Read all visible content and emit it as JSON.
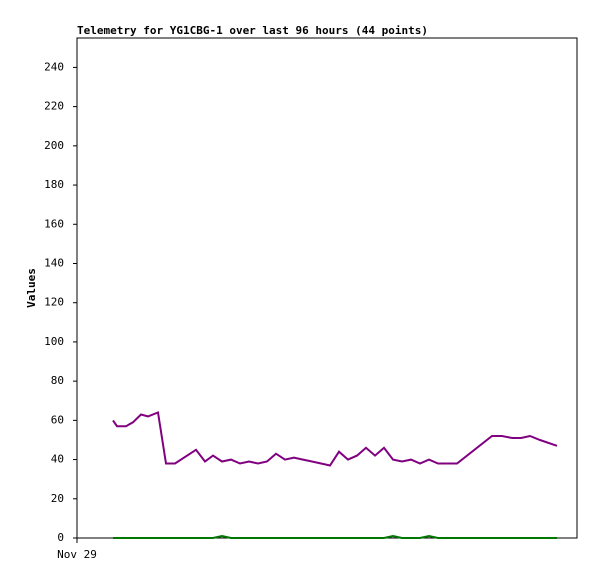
{
  "chart_data": {
    "type": "line",
    "title": "Telemetry for YG1CBG-1 over last 96 hours (44 points)",
    "y_label": "Values",
    "x": [
      7.2,
      8,
      9.8,
      11.2,
      12.8,
      14.2,
      16.2,
      17.8,
      19.6,
      23.8,
      25.6,
      27.2,
      29,
      30.8,
      32.6,
      34.4,
      36.2,
      38,
      39.8,
      41.6,
      43.4,
      45.2,
      47,
      50.6,
      52.4,
      54.2,
      56,
      57.8,
      59.6,
      61.4,
      63.2,
      65,
      66.8,
      68.6,
      70.4,
      72.2,
      76,
      83,
      85,
      87,
      88.8,
      90.6,
      92.6,
      96
    ],
    "series": [
      {
        "color": "#800080",
        "values": [
          60,
          57,
          57,
          59,
          63,
          62,
          64,
          38,
          38,
          45,
          39,
          42,
          39,
          40,
          38,
          39,
          38,
          39,
          43,
          40,
          41,
          40,
          39,
          37,
          44,
          40,
          42,
          46,
          42,
          46,
          40,
          39,
          40,
          38,
          40,
          38,
          38,
          52,
          52,
          51,
          51,
          52,
          50,
          47
        ]
      },
      {
        "color": "#007700",
        "values": [
          0,
          0,
          0,
          0,
          0,
          0,
          0,
          0,
          0,
          0,
          0,
          0,
          1,
          0,
          0,
          0,
          0,
          0,
          0,
          0,
          0,
          0,
          0,
          0,
          0,
          0,
          0,
          0,
          0,
          0,
          1,
          0,
          0,
          0,
          1,
          0,
          0,
          0,
          0,
          0,
          0,
          0,
          0,
          0
        ]
      }
    ],
    "xlim": [
      0,
      100
    ],
    "xticks": [
      {
        "value": 0,
        "label": "Nov 29"
      }
    ],
    "ylim": [
      0,
      255
    ],
    "yticks": [
      0,
      20,
      40,
      60,
      80,
      100,
      120,
      140,
      160,
      180,
      200,
      220,
      240
    ]
  }
}
